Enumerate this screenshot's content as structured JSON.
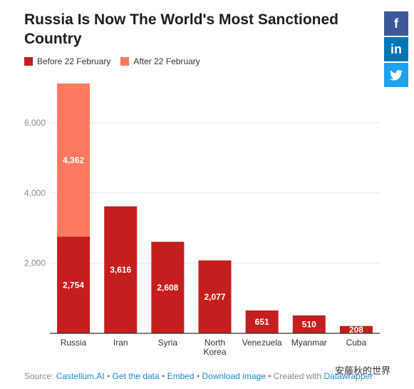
{
  "title": "Russia Is Now The World's Most Sanctioned Country",
  "colors": {
    "before": "#c41e1e",
    "after": "#fb7a61",
    "axis": "#333333",
    "grid": "#e6e6e6"
  },
  "legend": [
    {
      "label": "Before 22 February",
      "color": "#c41e1e"
    },
    {
      "label": "After 22 February",
      "color": "#fb7a61"
    }
  ],
  "chart_data": {
    "type": "bar",
    "stacked": true,
    "categories": [
      "Russia",
      "Iran",
      "Syria",
      "North Korea",
      "Venezuela",
      "Myanmar",
      "Cuba"
    ],
    "series": [
      {
        "name": "Before 22 February",
        "values": [
          2754,
          3616,
          2608,
          2077,
          651,
          510,
          208
        ]
      },
      {
        "name": "After 22 February",
        "values": [
          4362,
          0,
          0,
          0,
          0,
          0,
          0
        ]
      }
    ],
    "value_labels": {
      "before": [
        "2,754",
        "3,616",
        "2,608",
        "2,077",
        "651",
        "510",
        "208"
      ],
      "after": [
        "4,362",
        "",
        "",
        "",
        "",
        "",
        ""
      ]
    },
    "category_labels": [
      [
        "Russia"
      ],
      [
        "Iran"
      ],
      [
        "Syria"
      ],
      [
        "North",
        "Korea"
      ],
      [
        "Venezuela"
      ],
      [
        "Myanmar"
      ],
      [
        "Cuba"
      ]
    ],
    "yticks": [
      2000,
      4000,
      6000
    ],
    "ytick_labels": [
      "2,000",
      "4,000",
      "6,000"
    ],
    "ylim": [
      0,
      7116
    ],
    "grid": true,
    "legend_position": "top-left"
  },
  "footer": {
    "source_label": "Source:",
    "source_link": "Castellum.AI",
    "get_data": "Get the data",
    "embed": "Embed",
    "download": "Download image",
    "created_with": "Created with",
    "tool": "Datawrapper",
    "separator": "•"
  },
  "share": {
    "facebook": "f",
    "linkedin": "in",
    "twitter": "twitter-bird"
  },
  "watermark": "安藤秋的世界"
}
